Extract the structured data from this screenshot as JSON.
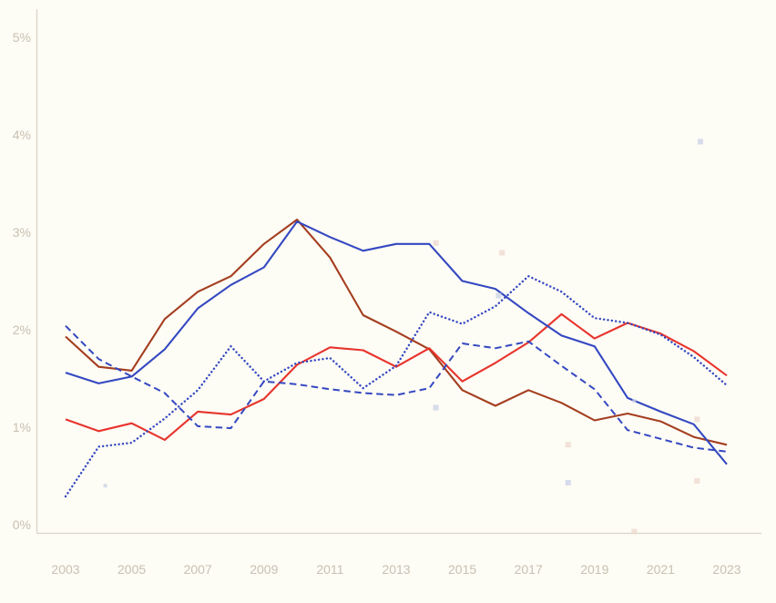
{
  "page": {
    "background_color": "#fdfcf5"
  },
  "chart_data": {
    "type": "line",
    "title": "",
    "subtitle": "",
    "legend_position": "none",
    "grid": false,
    "background_color": "#fdfcf5",
    "axis_color": "#dbd5c7",
    "tick_label_color": "#c9c0b2",
    "x": [
      2003,
      2004,
      2005,
      2006,
      2007,
      2008,
      2009,
      2010,
      2011,
      2012,
      2013,
      2014,
      2015,
      2016,
      2017,
      2018,
      2019,
      2020,
      2021,
      2022,
      2023
    ],
    "xlim": [
      2002.1,
      2024.1
    ],
    "ylim": [
      0,
      5.3
    ],
    "x_axis": {
      "tick_years": [
        2003,
        2005,
        2007,
        2009,
        2011,
        2013,
        2015,
        2017,
        2019,
        2021,
        2023
      ],
      "tick_labels": [
        "2003",
        "2005",
        "2007",
        "2009",
        "2011",
        "2013",
        "2015",
        "2017",
        "2019",
        "2021",
        "2023"
      ]
    },
    "y_axis": {
      "tick_values": [
        0,
        1,
        2,
        3,
        4,
        5
      ],
      "tick_labels": [
        "0%",
        "1%",
        "2%",
        "3%",
        "4%",
        "5%"
      ]
    },
    "series": [
      {
        "name": "dark-red-solid",
        "color": "#a43e1f",
        "style": "solid",
        "values": [
          1.93,
          1.62,
          1.58,
          2.11,
          2.39,
          2.55,
          2.88,
          3.13,
          2.74,
          2.15,
          1.98,
          1.8,
          1.38,
          1.22,
          1.38,
          1.25,
          1.07,
          1.14,
          1.06,
          0.9,
          0.82
        ]
      },
      {
        "name": "red-solid",
        "color": "#e7342c",
        "style": "solid",
        "values": [
          1.08,
          0.96,
          1.04,
          0.87,
          1.16,
          1.13,
          1.29,
          1.64,
          1.82,
          1.79,
          1.62,
          1.81,
          1.47,
          1.66,
          1.87,
          2.16,
          1.91,
          2.07,
          1.96,
          1.78,
          1.53
        ]
      },
      {
        "name": "blue-solid",
        "color": "#3448c1",
        "style": "solid",
        "values": [
          1.56,
          1.45,
          1.52,
          1.8,
          2.22,
          2.46,
          2.64,
          3.11,
          2.95,
          2.81,
          2.88,
          2.88,
          2.5,
          2.42,
          2.17,
          1.94,
          1.83,
          1.3,
          1.16,
          1.03,
          0.62
        ]
      },
      {
        "name": "blue-dashed",
        "color": "#3448c1",
        "style": "dashed",
        "values": [
          2.04,
          1.7,
          1.52,
          1.35,
          1.01,
          0.99,
          1.47,
          1.44,
          1.39,
          1.35,
          1.33,
          1.4,
          1.86,
          1.81,
          1.88,
          1.63,
          1.39,
          0.97,
          0.88,
          0.79,
          0.75
        ]
      },
      {
        "name": "blue-dotted",
        "color": "#3448c1",
        "style": "dotted",
        "values": [
          0.29,
          0.8,
          0.84,
          1.09,
          1.38,
          1.83,
          1.47,
          1.66,
          1.71,
          1.4,
          1.63,
          2.18,
          2.06,
          2.24,
          2.55,
          2.39,
          2.12,
          2.07,
          1.95,
          1.72,
          1.43
        ]
      }
    ],
    "faint_markers": [
      {
        "year": 2022.2,
        "value": 3.93,
        "tone": "lavender",
        "small": false
      },
      {
        "year": 2014.2,
        "value": 2.89,
        "tone": "pink",
        "small": false
      },
      {
        "year": 2016.2,
        "value": 2.79,
        "tone": "pink",
        "small": false
      },
      {
        "year": 2016.1,
        "value": 2.35,
        "tone": "lavender",
        "small": false
      },
      {
        "year": 2014.2,
        "value": 1.2,
        "tone": "lavender",
        "small": false
      },
      {
        "year": 2004.2,
        "value": 0.4,
        "tone": "lavender",
        "small": true
      },
      {
        "year": 2018.2,
        "value": 0.82,
        "tone": "pink",
        "small": false
      },
      {
        "year": 2018.2,
        "value": 0.43,
        "tone": "lavender",
        "small": false
      },
      {
        "year": 2022.1,
        "value": 0.45,
        "tone": "pink",
        "small": false
      },
      {
        "year": 2020.2,
        "value": -0.07,
        "tone": "pink",
        "small": false
      },
      {
        "year": 2020.2,
        "value": 1.27,
        "tone": "lavender",
        "small": true
      },
      {
        "year": 2022.1,
        "value": 1.08,
        "tone": "pink",
        "small": false
      }
    ],
    "marker_colors": {
      "lavender": "#ccd3e9",
      "pink": "#edd9ce"
    }
  }
}
